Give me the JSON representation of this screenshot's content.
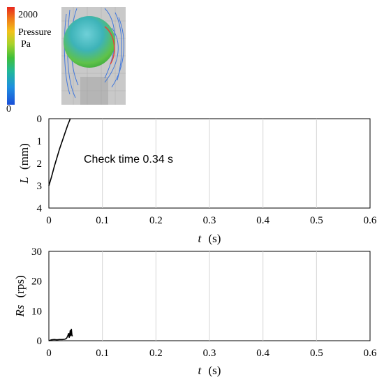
{
  "legend": {
    "max_label": "2000",
    "min_label": "0",
    "title_line1": "Pressure",
    "title_line2": "Pa",
    "colors": [
      "#e8281e",
      "#f07a18",
      "#f2c21a",
      "#a8d22a",
      "#3fbf3a",
      "#21b89a",
      "#1e8fe0",
      "#1a4fd8"
    ]
  },
  "chart_data": [
    {
      "type": "line",
      "title": "",
      "annotation": "Check time 0.34 s",
      "xlabel_italic": "t",
      "xlabel_unit": "(s)",
      "ylabel_italic": "L",
      "ylabel_unit": "(mm)",
      "xlim": [
        0,
        0.6
      ],
      "ylim": [
        0,
        4
      ],
      "y_inverted": true,
      "xticks": [
        "0",
        "0.1",
        "0.2",
        "0.3",
        "0.4",
        "0.5",
        "0.6"
      ],
      "yticks": [
        "0",
        "1",
        "2",
        "3",
        "4"
      ],
      "grid": "vertical",
      "series": [
        {
          "x": [
            0.0,
            0.005,
            0.01,
            0.015,
            0.02,
            0.025,
            0.03,
            0.035,
            0.04
          ],
          "y": [
            3.0,
            2.6,
            2.15,
            1.75,
            1.35,
            1.0,
            0.65,
            0.3,
            0.0
          ]
        }
      ]
    },
    {
      "type": "line",
      "title": "",
      "xlabel_italic": "t",
      "xlabel_unit": "(s)",
      "ylabel_italic": "Rs",
      "ylabel_unit": "(rps)",
      "xlim": [
        0,
        0.6
      ],
      "ylim": [
        0,
        30
      ],
      "y_inverted": false,
      "xticks": [
        "0",
        "0.1",
        "0.2",
        "0.3",
        "0.4",
        "0.5",
        "0.6"
      ],
      "yticks": [
        "0",
        "10",
        "20",
        "30"
      ],
      "grid": "vertical",
      "series": [
        {
          "x": [
            0.0,
            0.005,
            0.01,
            0.015,
            0.02,
            0.025,
            0.03,
            0.033,
            0.035,
            0.037,
            0.038,
            0.04,
            0.041,
            0.042,
            0.043,
            0.044
          ],
          "y": [
            0.0,
            0.3,
            0.4,
            0.3,
            0.4,
            0.4,
            0.5,
            0.8,
            1.5,
            2.5,
            1.0,
            3.5,
            1.5,
            4.0,
            2.0,
            1.5
          ]
        }
      ]
    }
  ]
}
